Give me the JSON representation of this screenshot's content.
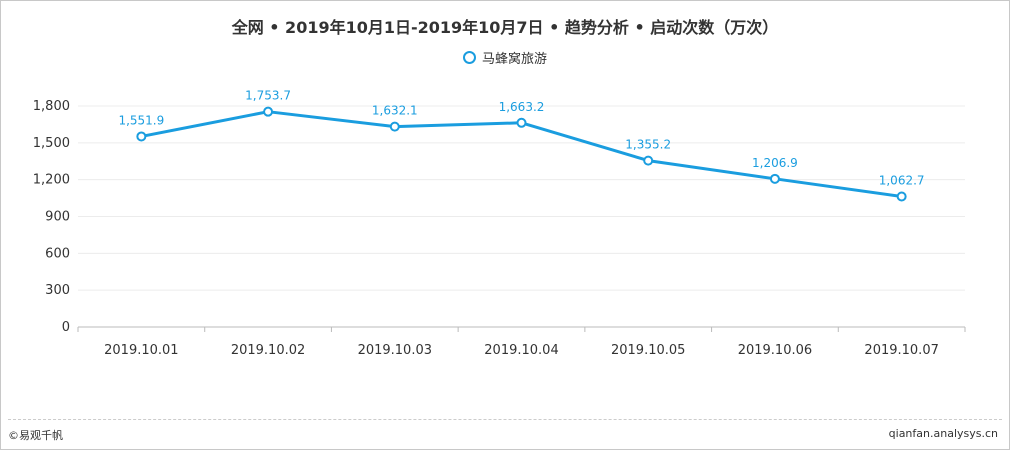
{
  "title": "全网 • 2019年10月1日-2019年10月7日 • 趋势分析 • 启动次数（万次）",
  "footer": {
    "left": "©易观千帆",
    "right": "qianfan.analysys.cn"
  },
  "chart_data": {
    "type": "line",
    "title": "全网 • 2019年10月1日-2019年10月7日 • 趋势分析 • 启动次数（万次）",
    "categories": [
      "2019.10.01",
      "2019.10.02",
      "2019.10.03",
      "2019.10.04",
      "2019.10.05",
      "2019.10.06",
      "2019.10.07"
    ],
    "series": [
      {
        "name": "马蜂窝旅游",
        "values": [
          1551.9,
          1753.7,
          1632.1,
          1663.2,
          1355.2,
          1206.9,
          1062.7
        ],
        "labels": [
          "1,551.9",
          "1,753.7",
          "1,632.1",
          "1,663.2",
          "1,355.2",
          "1,206.9",
          "1,062.7"
        ],
        "color": "#1a9ddf"
      }
    ],
    "yticks": [
      0,
      300,
      600,
      900,
      1200,
      1500,
      1800
    ],
    "ytick_labels": [
      "0",
      "300",
      "600",
      "900",
      "1,200",
      "1,500",
      "1,800"
    ],
    "ylim": [
      0,
      1800
    ],
    "grid": true,
    "legend_position": "top-center"
  }
}
